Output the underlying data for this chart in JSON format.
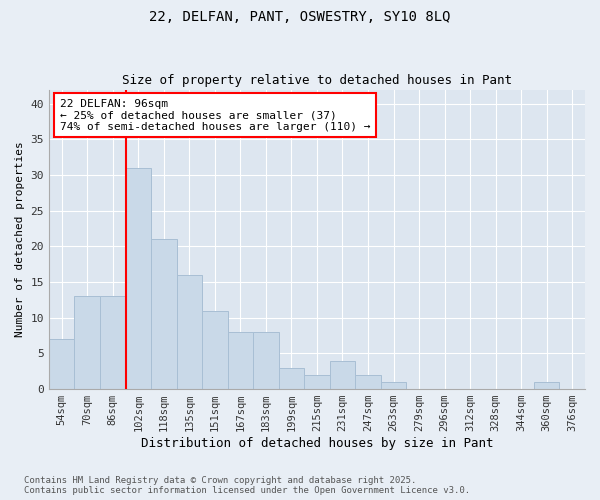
{
  "title1": "22, DELFAN, PANT, OSWESTRY, SY10 8LQ",
  "title2": "Size of property relative to detached houses in Pant",
  "xlabel": "Distribution of detached houses by size in Pant",
  "ylabel": "Number of detached properties",
  "categories": [
    "54sqm",
    "70sqm",
    "86sqm",
    "102sqm",
    "118sqm",
    "135sqm",
    "151sqm",
    "167sqm",
    "183sqm",
    "199sqm",
    "215sqm",
    "231sqm",
    "247sqm",
    "263sqm",
    "279sqm",
    "296sqm",
    "312sqm",
    "328sqm",
    "344sqm",
    "360sqm",
    "376sqm"
  ],
  "values": [
    7,
    13,
    13,
    31,
    21,
    16,
    11,
    8,
    8,
    3,
    2,
    4,
    2,
    1,
    0,
    0,
    0,
    0,
    0,
    1,
    0
  ],
  "bar_color": "#c9d9e8",
  "bar_edgecolor": "#a8bfd4",
  "vline_color": "red",
  "annotation_text": "22 DELFAN: 96sqm\n← 25% of detached houses are smaller (37)\n74% of semi-detached houses are larger (110) →",
  "annotation_box_color": "white",
  "annotation_box_edgecolor": "red",
  "ylim": [
    0,
    42
  ],
  "yticks": [
    0,
    5,
    10,
    15,
    20,
    25,
    30,
    35,
    40
  ],
  "footnote": "Contains HM Land Registry data © Crown copyright and database right 2025.\nContains public sector information licensed under the Open Government Licence v3.0.",
  "background_color": "#e8eef5",
  "plot_background_color": "#dde6f0",
  "grid_color": "white"
}
